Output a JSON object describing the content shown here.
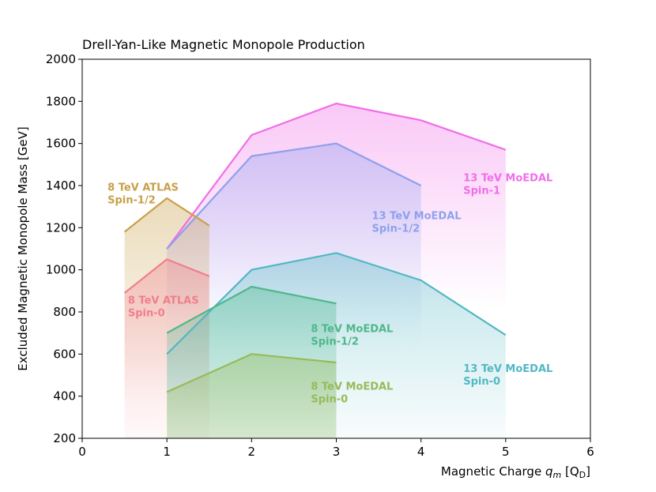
{
  "chart_data": {
    "type": "area",
    "title": "Drell-Yan-Like Magnetic Monopole Production",
    "xlabel": "Magnetic Charge q_m [Q_D]",
    "xlabel_main": "Magnetic Charge ",
    "xlabel_var": "q",
    "xlabel_sub": "m",
    "xlabel_unit_open": " [Q",
    "xlabel_unit_sub": "D",
    "xlabel_unit_close": "]",
    "ylabel": "Excluded Magnetic Monopole Mass [GeV]",
    "xlim": [
      0,
      6
    ],
    "ylim": [
      200,
      2000
    ],
    "xticks": [
      0,
      1,
      2,
      3,
      4,
      5,
      6
    ],
    "yticks": [
      200,
      400,
      600,
      800,
      1000,
      1200,
      1400,
      1600,
      1800,
      2000
    ],
    "grid": false,
    "series": [
      {
        "name": "13 TeV MoEDAL Spin-1",
        "line1": "13 TeV MoEDAL",
        "line2": "Spin-1",
        "color": "#f06ee8",
        "x": [
          1,
          2,
          3,
          4,
          5
        ],
        "y": [
          1100,
          1640,
          1790,
          1710,
          1570
        ],
        "label_x": 4.5,
        "label_y": 1420
      },
      {
        "name": "13 TeV MoEDAL Spin-1/2",
        "line1": "13 TeV MoEDAL",
        "line2": "Spin-1/2",
        "color": "#8ea0ee",
        "x": [
          1,
          2,
          3,
          4
        ],
        "y": [
          1100,
          1540,
          1600,
          1400
        ],
        "label_x": 3.42,
        "label_y": 1240
      },
      {
        "name": "8 TeV ATLAS Spin-1/2",
        "line1": "8 TeV ATLAS",
        "line2": "Spin-1/2",
        "color": "#c9a04a",
        "x": [
          0.5,
          1,
          1.5
        ],
        "y": [
          1180,
          1340,
          1210
        ],
        "label_x": 0.3,
        "label_y": 1375
      },
      {
        "name": "8 TeV ATLAS Spin-0",
        "line1": "8 TeV ATLAS",
        "line2": "Spin-0",
        "color": "#f07f8a",
        "x": [
          0.5,
          1,
          1.5
        ],
        "y": [
          890,
          1050,
          970
        ],
        "label_x": 0.54,
        "label_y": 840
      },
      {
        "name": "13 TeV MoEDAL Spin-0",
        "line1": "13 TeV MoEDAL",
        "line2": "Spin-0",
        "color": "#52b8c4",
        "x": [
          1,
          2,
          3,
          4,
          5
        ],
        "y": [
          600,
          1000,
          1080,
          950,
          690
        ],
        "label_x": 4.5,
        "label_y": 515
      },
      {
        "name": "8 TeV MoEDAL Spin-1/2",
        "line1": "8 TeV MoEDAL",
        "line2": "Spin-1/2",
        "color": "#4db88a",
        "x": [
          1,
          2,
          3
        ],
        "y": [
          700,
          920,
          840
        ],
        "label_x": 2.7,
        "label_y": 705
      },
      {
        "name": "8 TeV MoEDAL Spin-0",
        "line1": "8 TeV MoEDAL",
        "line2": "Spin-0",
        "color": "#97ba58",
        "x": [
          1,
          2,
          3
        ],
        "y": [
          420,
          600,
          560
        ],
        "label_x": 2.7,
        "label_y": 430
      }
    ]
  }
}
